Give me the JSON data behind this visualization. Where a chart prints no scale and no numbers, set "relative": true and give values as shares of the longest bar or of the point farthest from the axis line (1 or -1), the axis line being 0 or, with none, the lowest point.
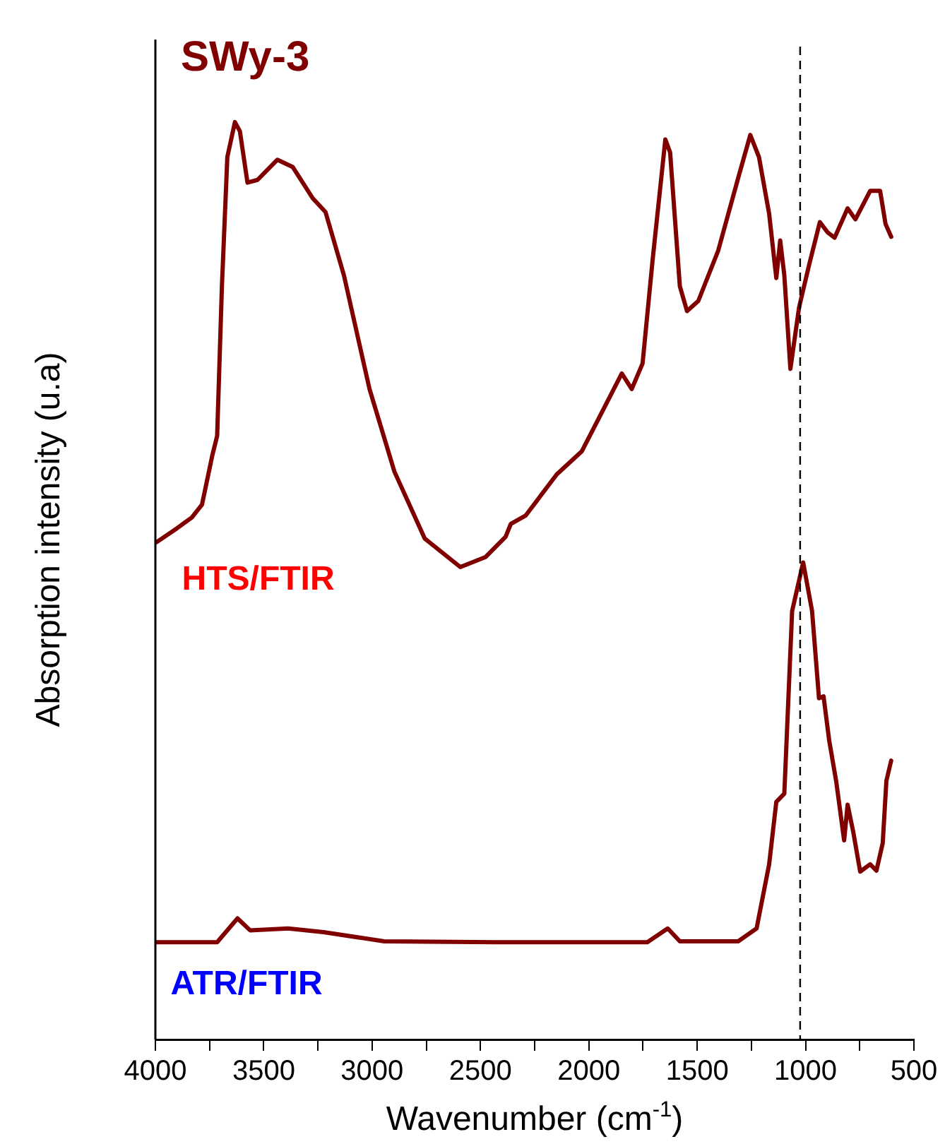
{
  "chart_data": {
    "type": "line",
    "title": "SWy-3",
    "xlabel": "Wavenumber (cm$^{-1}$)",
    "ylabel": "Absorption intensity (u.a)",
    "relative": true,
    "xlim": [
      4000,
      500
    ],
    "xticks": [
      4000,
      {
        "value": 3750,
        "label": null
      },
      3500,
      {
        "value": 3250,
        "label": null
      },
      3000,
      {
        "value": 2750,
        "label": null
      },
      2500,
      {
        "value": 2250,
        "label": null
      },
      2000,
      {
        "value": 1750,
        "label": null
      },
      1500,
      {
        "value": 1250,
        "label": null
      },
      1000,
      {
        "value": 750,
        "label": null
      },
      500
    ],
    "annotations": [
      "HTS/FTIR",
      "ATR/FTIR"
    ],
    "ref_lines": [
      {
        "axis": "x",
        "value": 1025,
        "color": "#000000",
        "line_style": "dashed"
      }
    ],
    "grid": false,
    "legend": false,
    "marker": "none",
    "line_style": "solid",
    "series": [
      {
        "color": "#800000",
        "x": [
          3995,
          3902,
          3832,
          3785,
          3738,
          3715,
          3693,
          3668,
          3633,
          3610,
          3575,
          3529,
          3437,
          3366,
          3274,
          3215,
          3130,
          3012,
          2897,
          2757,
          2593,
          2476,
          2384,
          2360,
          2292,
          2148,
          2033,
          1952,
          1848,
          1802,
          1752,
          1706,
          1647,
          1625,
          1580,
          1547,
          1495,
          1403,
          1311,
          1255,
          1215,
          1168,
          1135,
          1117,
          1098,
          1070,
          1030,
          984,
          934,
          899,
          866,
          806,
          770,
          702,
          656,
          631,
          605
        ],
        "values": [
          0.542,
          0.557,
          0.569,
          0.583,
          0.636,
          0.658,
          0.821,
          0.962,
          1,
          0.99,
          0.934,
          0.937,
          0.959,
          0.951,
          0.917,
          0.902,
          0.833,
          0.709,
          0.619,
          0.546,
          0.515,
          0.526,
          0.548,
          0.562,
          0.571,
          0.616,
          0.641,
          0.678,
          0.726,
          0.709,
          0.737,
          0.849,
          0.981,
          0.967,
          0.821,
          0.794,
          0.805,
          0.86,
          0.939,
          0.986,
          0.962,
          0.9,
          0.83,
          0.871,
          0.833,
          0.731,
          0.798,
          0.844,
          0.891,
          0.88,
          0.874,
          0.906,
          0.894,
          0.925,
          0.925,
          0.889,
          0.875
        ]
      },
      {
        "color": "#800000",
        "x": [
          3995,
          3715,
          3621,
          3563,
          3388,
          3224,
          2944,
          2430,
          1730,
          1636,
          1580,
          1311,
          1226,
          1168,
          1135,
          1098,
          1062,
          1011,
          970,
          938,
          917,
          891,
          859,
          822,
          806,
          779,
          748,
          702,
          673,
          644,
          627,
          605
        ],
        "values": [
          0.106,
          0.106,
          0.132,
          0.119,
          0.121,
          0.117,
          0.107,
          0.106,
          0.106,
          0.121,
          0.107,
          0.107,
          0.121,
          0.191,
          0.259,
          0.268,
          0.467,
          0.52,
          0.467,
          0.372,
          0.374,
          0.326,
          0.282,
          0.217,
          0.256,
          0.225,
          0.183,
          0.191,
          0.184,
          0.214,
          0.282,
          0.304
        ]
      }
    ]
  }
}
